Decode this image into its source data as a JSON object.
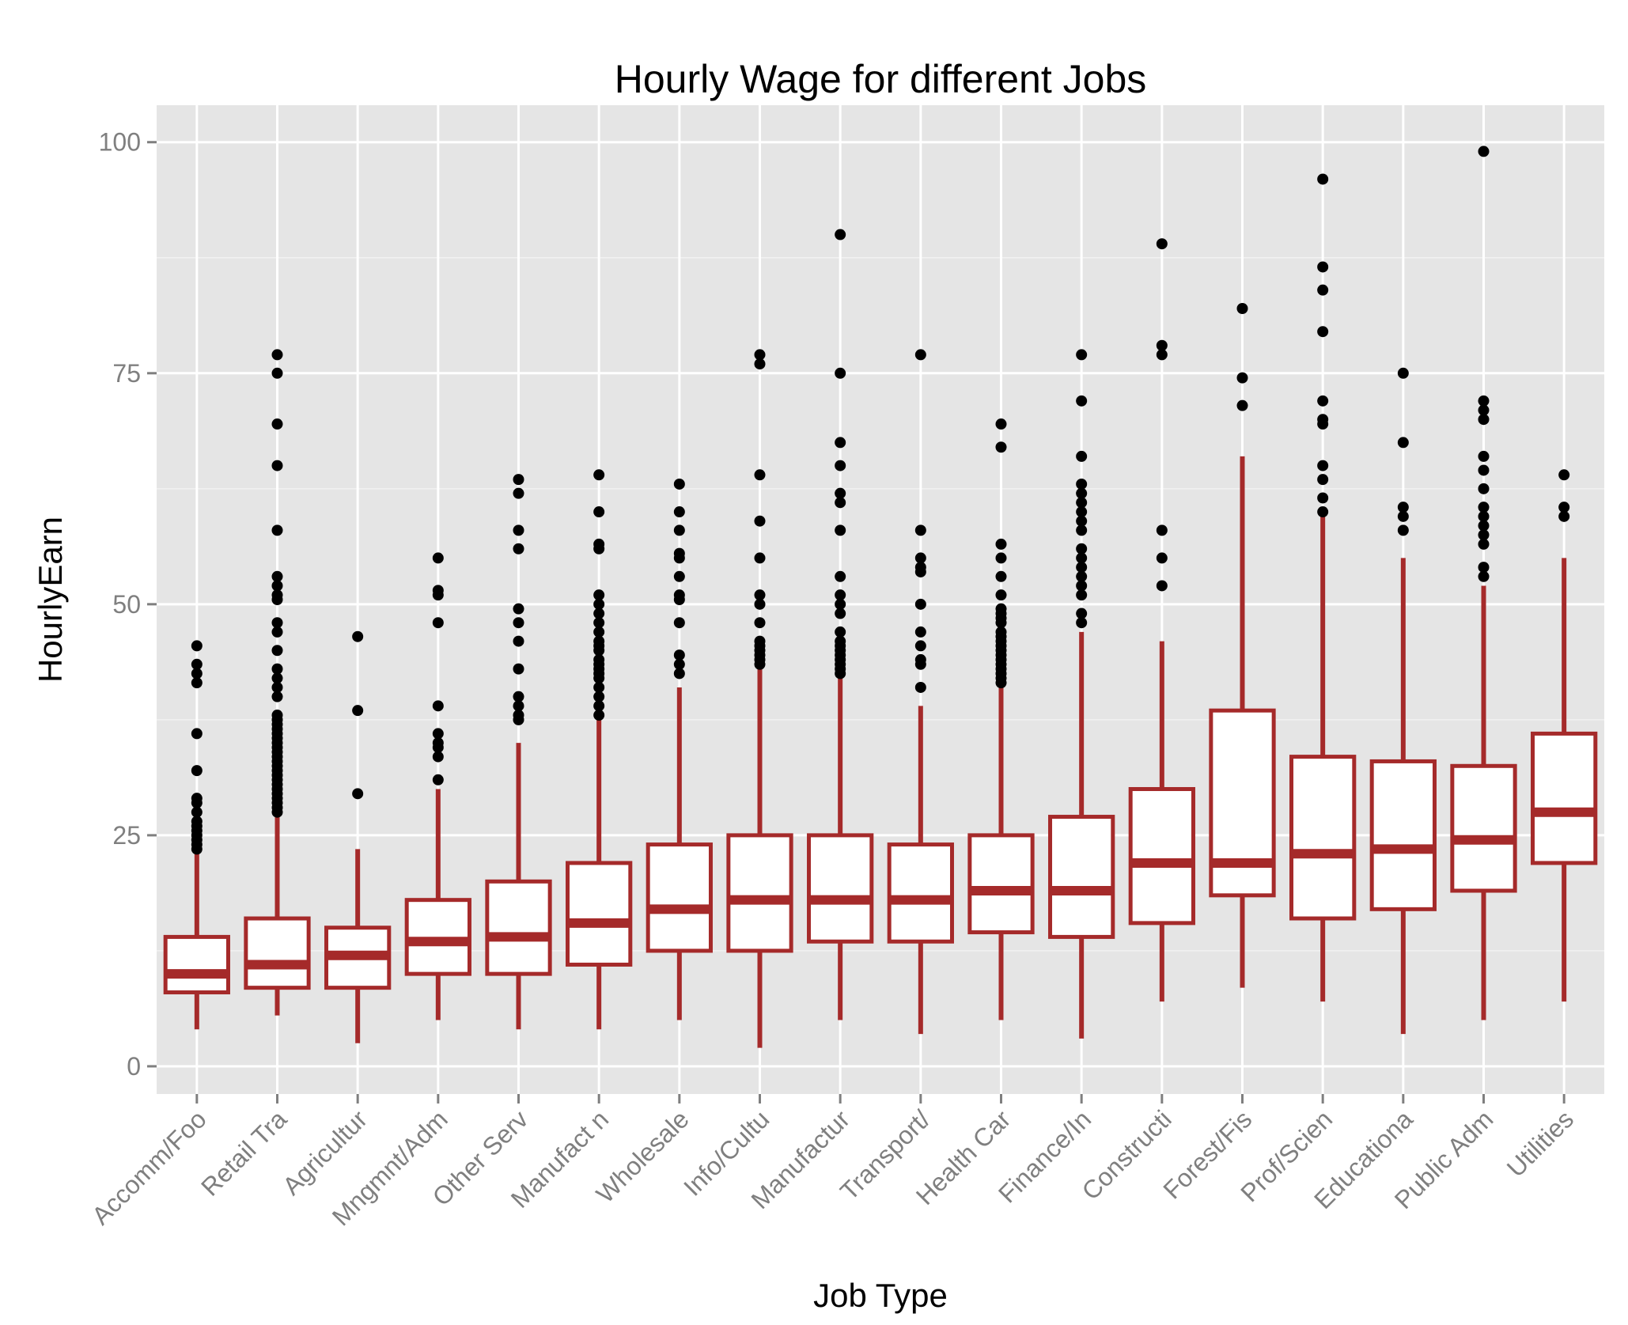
{
  "chart_data": {
    "type": "boxplot",
    "title": "Hourly Wage for different Jobs",
    "xlabel": "Job Type",
    "ylabel": "HourlyEarn",
    "ylim": [
      -3,
      104
    ],
    "yticks": [
      0,
      25,
      50,
      75,
      100
    ],
    "ytick_labels": [
      "0",
      "25",
      "50",
      "75",
      "100"
    ],
    "grid": true,
    "colors": {
      "box": "#a52a2a",
      "outlier": "#000000",
      "panel": "#e5e5e5",
      "grid": "#ffffff"
    },
    "categories": [
      "Accomm/Foo",
      "Retail Tra",
      "Agricultur",
      "Mngmnt/Adm",
      "Other Serv",
      "Manufact n",
      "Wholesale",
      "Info/Cultu",
      "Manufactur",
      "Transport/",
      "Health Car",
      "Finance/In",
      "Constructi",
      "Forest/Fis",
      "Prof/Scien",
      "Educationa",
      "Public Adm",
      "Utilities"
    ],
    "boxes": [
      {
        "category": "Accomm/Foo",
        "min": 4,
        "q1": 8,
        "median": 10,
        "q3": 14,
        "max": 23,
        "outliers": [
          23.5,
          24,
          24.5,
          25,
          25.5,
          26,
          26.5,
          27.5,
          28.5,
          29,
          32,
          36,
          41.5,
          42.5,
          43.5,
          45.5
        ]
      },
      {
        "category": "Retail Tra",
        "min": 5.5,
        "q1": 8.5,
        "median": 11,
        "q3": 16,
        "max": 27,
        "outliers": [
          27.5,
          28,
          28.5,
          29,
          29.5,
          30,
          30.5,
          31,
          31.5,
          32,
          32.5,
          33,
          33.5,
          34,
          34.5,
          35,
          35.5,
          36,
          36.5,
          37,
          37.5,
          38,
          40,
          41,
          42,
          43,
          45,
          47,
          48,
          50.5,
          51,
          52,
          53,
          58,
          65,
          69.5,
          75,
          77
        ]
      },
      {
        "category": "Agricultur",
        "min": 2.5,
        "q1": 8.5,
        "median": 12,
        "q3": 15,
        "max": 23.5,
        "outliers": [
          29.5,
          38.5,
          46.5
        ]
      },
      {
        "category": "Mngmnt/Adm",
        "min": 5,
        "q1": 10,
        "median": 13.5,
        "q3": 18,
        "max": 30,
        "outliers": [
          31,
          33.5,
          34.5,
          35,
          36,
          39,
          48,
          51,
          51.5,
          55
        ]
      },
      {
        "category": "Other Serv",
        "min": 4,
        "q1": 10,
        "median": 14,
        "q3": 20,
        "max": 35,
        "outliers": [
          37.5,
          38,
          39,
          40,
          43,
          46,
          48,
          49.5,
          56,
          58,
          62,
          63.5
        ]
      },
      {
        "category": "Manufact n",
        "min": 4,
        "q1": 11,
        "median": 15.5,
        "q3": 22,
        "max": 37.5,
        "outliers": [
          38,
          39,
          40,
          41,
          42,
          42.5,
          43,
          43.5,
          44,
          45,
          45.5,
          46,
          47,
          48,
          49,
          50,
          51,
          56,
          56.5,
          60,
          64
        ]
      },
      {
        "category": "Wholesale",
        "min": 5,
        "q1": 12.5,
        "median": 17,
        "q3": 24,
        "max": 41,
        "outliers": [
          42.5,
          43.5,
          44.5,
          48,
          50.5,
          51,
          53,
          55,
          55.5,
          58,
          60,
          63
        ]
      },
      {
        "category": "Info/Cultu",
        "min": 2,
        "q1": 12.5,
        "median": 18,
        "q3": 25,
        "max": 43,
        "outliers": [
          43.5,
          44,
          44.5,
          45,
          45.5,
          46,
          48,
          50,
          51,
          55,
          59,
          64,
          76,
          77
        ]
      },
      {
        "category": "Manufactur",
        "min": 5,
        "q1": 13.5,
        "median": 18,
        "q3": 25,
        "max": 42,
        "outliers": [
          42.5,
          43,
          43.5,
          44,
          44.5,
          45,
          45.5,
          46,
          47,
          49,
          50,
          51,
          53,
          58,
          61,
          62,
          65,
          67.5,
          75,
          90
        ]
      },
      {
        "category": "Transport/",
        "min": 3.5,
        "q1": 13.5,
        "median": 18,
        "q3": 24,
        "max": 39,
        "outliers": [
          41,
          43.5,
          44,
          45.5,
          47,
          50,
          53.5,
          54,
          55,
          58,
          77
        ]
      },
      {
        "category": "Health Car",
        "min": 5,
        "q1": 14.5,
        "median": 19,
        "q3": 25,
        "max": 41,
        "outliers": [
          41.5,
          42,
          42.5,
          43,
          43.5,
          44,
          44.5,
          45,
          45.5,
          46,
          46.5,
          47,
          48,
          48.5,
          49,
          49.5,
          51,
          53,
          55,
          56.5,
          67,
          69.5
        ]
      },
      {
        "category": "Finance/In",
        "min": 3,
        "q1": 14,
        "median": 19,
        "q3": 27,
        "max": 47,
        "outliers": [
          48,
          49,
          51,
          52,
          53,
          54,
          55,
          56,
          58,
          59,
          60,
          61,
          62,
          63,
          66,
          72,
          77
        ]
      },
      {
        "category": "Constructi",
        "min": 7,
        "q1": 15.5,
        "median": 22,
        "q3": 30,
        "max": 46,
        "outliers": [
          52,
          55,
          58,
          77,
          78,
          89
        ]
      },
      {
        "category": "Forest/Fis",
        "min": 8.5,
        "q1": 18.5,
        "median": 22,
        "q3": 38.5,
        "max": 66,
        "outliers": [
          71.5,
          74.5,
          82
        ]
      },
      {
        "category": "Prof/Scien",
        "min": 7,
        "q1": 16,
        "median": 23,
        "q3": 33.5,
        "max": 59.5,
        "outliers": [
          60,
          61.5,
          63.5,
          65,
          69.5,
          70,
          72,
          79.5,
          84,
          86.5,
          96
        ]
      },
      {
        "category": "Educationa",
        "min": 3.5,
        "q1": 17,
        "median": 23.5,
        "q3": 33,
        "max": 55,
        "outliers": [
          58,
          59.5,
          60.5,
          67.5,
          75
        ]
      },
      {
        "category": "Public Adm",
        "min": 5,
        "q1": 19,
        "median": 24.5,
        "q3": 32.5,
        "max": 52,
        "outliers": [
          53,
          54,
          56.5,
          57.5,
          58.5,
          59.5,
          60.5,
          62.5,
          64.5,
          66,
          70,
          71,
          72,
          99
        ]
      },
      {
        "category": "Utilities",
        "min": 7,
        "q1": 22,
        "median": 27.5,
        "q3": 36,
        "max": 55,
        "outliers": [
          59.5,
          60.5,
          64
        ]
      }
    ]
  }
}
